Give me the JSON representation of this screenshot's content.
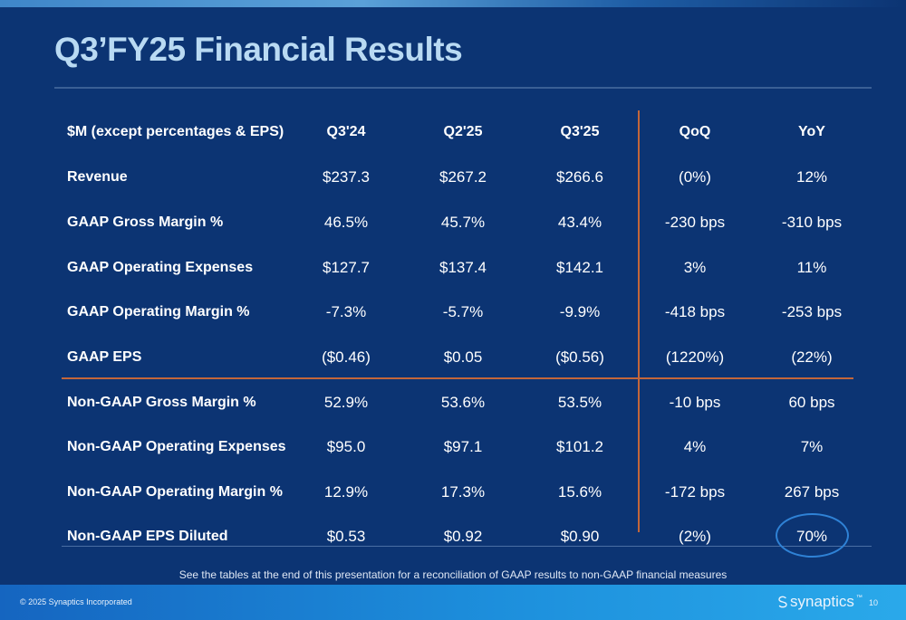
{
  "slide": {
    "title": "Q3’FY25 Financial Results",
    "footnote": "See the tables at the end of this presentation for a reconciliation of GAAP results to non-GAAP financial measures",
    "copyright": "© 2025 Synaptics Incorporated",
    "logo_text": "synaptics",
    "logo_tm": "™",
    "page_number": "10"
  },
  "table": {
    "headers": [
      "$M (except percentages & EPS)",
      "Q3'24",
      "Q2'25",
      "Q3'25",
      "QoQ",
      "YoY"
    ],
    "rows": [
      {
        "label": "Revenue",
        "values": [
          "$237.3",
          "$267.2",
          "$266.6",
          "(0%)",
          "12%"
        ]
      },
      {
        "label": "GAAP Gross Margin %",
        "values": [
          "46.5%",
          "45.7%",
          "43.4%",
          "-230 bps",
          "-310 bps"
        ]
      },
      {
        "label": "GAAP Operating Expenses",
        "values": [
          "$127.7",
          "$137.4",
          "$142.1",
          "3%",
          "11%"
        ]
      },
      {
        "label": "GAAP Operating Margin %",
        "values": [
          "-7.3%",
          "-5.7%",
          "-9.9%",
          "-418 bps",
          "-253 bps"
        ]
      },
      {
        "label": "GAAP EPS",
        "values": [
          "($0.46)",
          "$0.05",
          "($0.56)",
          "(1220%)",
          "(22%)"
        ]
      },
      {
        "label": "Non-GAAP Gross Margin %",
        "values": [
          "52.9%",
          "53.6%",
          "53.5%",
          "-10 bps",
          "60 bps"
        ]
      },
      {
        "label": "Non-GAAP Operating Expenses",
        "values": [
          "$95.0",
          "$97.1",
          "$101.2",
          "4%",
          "7%"
        ]
      },
      {
        "label": "Non-GAAP Operating Margin %",
        "values": [
          "12.9%",
          "17.3%",
          "15.6%",
          "-172 bps",
          "267 bps"
        ]
      },
      {
        "label": "Non-GAAP EPS Diluted",
        "values": [
          "$0.53",
          "$0.92",
          "$0.90",
          "(2%)",
          "70%"
        ]
      }
    ]
  },
  "colors": {
    "background": "#0c3473",
    "title": "#b9daf3",
    "divider_accent": "#c4663a",
    "highlight": "#2f82d6"
  }
}
